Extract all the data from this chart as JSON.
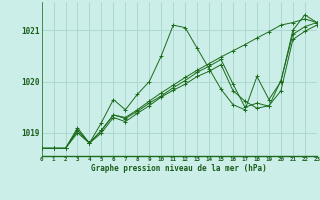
{
  "title": "Graphe pression niveau de la mer (hPa)",
  "bg_color": "#cceee8",
  "grid_color": "#aad4cc",
  "line_color": "#1a6b1a",
  "marker_color": "#1a6b1a",
  "label_color": "#1a5c1a",
  "x_ticks": [
    0,
    1,
    2,
    3,
    4,
    5,
    6,
    7,
    8,
    9,
    10,
    11,
    12,
    13,
    14,
    15,
    16,
    17,
    18,
    19,
    20,
    21,
    22,
    23
  ],
  "y_ticks": [
    1019,
    1020,
    1021
  ],
  "ylim": [
    1018.55,
    1021.55
  ],
  "xlim": [
    0,
    23
  ],
  "series": [
    [
      1018.7,
      1018.7,
      1018.7,
      1019.1,
      1018.8,
      1019.2,
      1019.65,
      1019.45,
      1019.75,
      1020.0,
      1020.5,
      1021.1,
      1021.05,
      1020.65,
      1020.25,
      1019.85,
      1019.55,
      1019.45,
      1020.1,
      1019.65,
      1020.0,
      1021.0,
      1021.3,
      1021.15
    ],
    [
      1018.7,
      1018.7,
      1018.7,
      1019.05,
      1018.8,
      1019.05,
      1019.35,
      1019.3,
      1019.45,
      1019.62,
      1019.78,
      1019.93,
      1020.08,
      1020.22,
      1020.35,
      1020.48,
      1020.6,
      1020.72,
      1020.85,
      1020.97,
      1021.1,
      1021.15,
      1021.22,
      1021.15
    ],
    [
      1018.7,
      1018.7,
      1018.7,
      1019.05,
      1018.8,
      1019.05,
      1019.35,
      1019.28,
      1019.42,
      1019.58,
      1019.72,
      1019.88,
      1020.02,
      1020.18,
      1020.3,
      1020.43,
      1019.95,
      1019.5,
      1019.58,
      1019.52,
      1020.02,
      1020.92,
      1021.07,
      1021.15
    ],
    [
      1018.7,
      1018.7,
      1018.7,
      1019.0,
      1018.8,
      1019.0,
      1019.3,
      1019.22,
      1019.38,
      1019.53,
      1019.7,
      1019.83,
      1019.95,
      1020.1,
      1020.2,
      1020.33,
      1019.82,
      1019.62,
      1019.48,
      1019.53,
      1019.82,
      1020.82,
      1020.98,
      1021.1
    ]
  ]
}
